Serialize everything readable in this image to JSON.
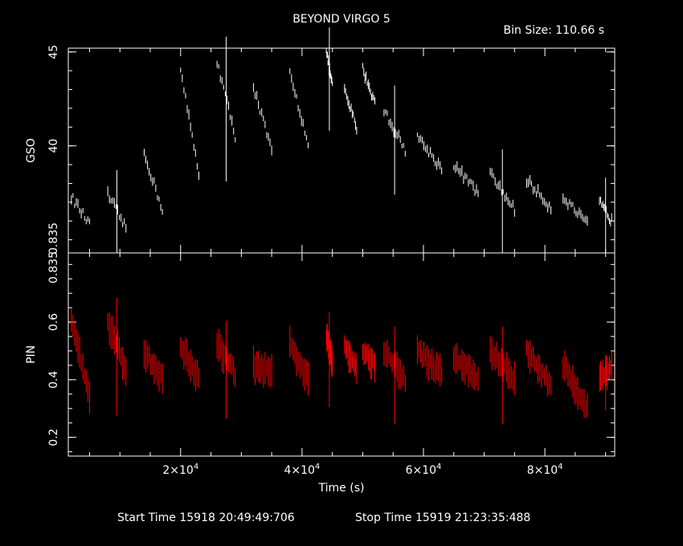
{
  "header": {
    "title": "BEYOND VIRGO 5",
    "bin_size": "Bin Size: 110.66 s"
  },
  "footer": {
    "start_time": "Start Time 15918 20:49:49:706",
    "stop_time": "Stop Time 15919 21:23:35:488"
  },
  "chart_data": [
    {
      "type": "line",
      "name": "GSO panel",
      "ylabel": "GSO",
      "ylim": [
        34.3,
        45.2
      ],
      "yticks": [
        40,
        45
      ],
      "ytick_labels": [
        "40",
        "45"
      ],
      "ybottom_label": "0.835",
      "xlim": [
        1500,
        91500
      ],
      "color": "#ffffff",
      "segments": [
        {
          "x0": 2000,
          "x1": 5000,
          "y0": 37.3,
          "y1": 35.8
        },
        {
          "x0": 8000,
          "x1": 11000,
          "y0": 37.4,
          "y1": 35.6
        },
        {
          "x0": 14000,
          "x1": 17000,
          "y0": 39.6,
          "y1": 36.6
        },
        {
          "x0": 20000,
          "x1": 23000,
          "y0": 44.0,
          "y1": 38.5
        },
        {
          "x0": 26000,
          "x1": 29000,
          "y0": 44.5,
          "y1": 40.5
        },
        {
          "x0": 32000,
          "x1": 35000,
          "y0": 43.2,
          "y1": 39.7
        },
        {
          "x0": 38000,
          "x1": 41000,
          "y0": 43.8,
          "y1": 40.2
        },
        {
          "x0": 44000,
          "x1": 45000,
          "y0": 45.0,
          "y1": 43.2
        },
        {
          "x0": 47000,
          "x1": 49000,
          "y0": 42.9,
          "y1": 41.0
        },
        {
          "x0": 50000,
          "x1": 52000,
          "y0": 44.1,
          "y1": 42.3
        },
        {
          "x0": 53500,
          "x1": 57000,
          "y0": 41.9,
          "y1": 39.8
        },
        {
          "x0": 59000,
          "x1": 63000,
          "y0": 40.5,
          "y1": 38.8
        },
        {
          "x0": 65000,
          "x1": 69000,
          "y0": 39.0,
          "y1": 37.5
        },
        {
          "x0": 71000,
          "x1": 75000,
          "y0": 38.5,
          "y1": 36.6
        },
        {
          "x0": 77000,
          "x1": 81000,
          "y0": 38.2,
          "y1": 36.7
        },
        {
          "x0": 83000,
          "x1": 87000,
          "y0": 37.3,
          "y1": 35.8
        },
        {
          "x0": 89000,
          "x1": 91000,
          "y0": 37.0,
          "y1": 36.0
        }
      ]
    },
    {
      "type": "line",
      "name": "PIN panel",
      "ylabel": "PIN",
      "ylim": [
        0.135,
        0.84
      ],
      "yticks": [
        0.2,
        0.4,
        0.6
      ],
      "ytick_labels": [
        "0.2",
        "0.4",
        "0.6"
      ],
      "ytop_label": "0.835",
      "xlabel": "Time (s)",
      "xlim": [
        1500,
        91500
      ],
      "xticks": [
        20000,
        40000,
        60000,
        80000
      ],
      "xtick_labels": [
        "2×10^4",
        "4×10^4",
        "6×10^4",
        "8×10^4"
      ],
      "color": "#ff0000",
      "segments": [
        {
          "x0": 2000,
          "x1": 5000,
          "y0": 0.62,
          "y1": 0.35
        },
        {
          "x0": 8000,
          "x1": 11000,
          "y0": 0.6,
          "y1": 0.43
        },
        {
          "x0": 14000,
          "x1": 17000,
          "y0": 0.5,
          "y1": 0.4
        },
        {
          "x0": 20000,
          "x1": 23000,
          "y0": 0.52,
          "y1": 0.4
        },
        {
          "x0": 26000,
          "x1": 29000,
          "y0": 0.52,
          "y1": 0.42
        },
        {
          "x0": 32000,
          "x1": 35000,
          "y0": 0.45,
          "y1": 0.42
        },
        {
          "x0": 38000,
          "x1": 41000,
          "y0": 0.52,
          "y1": 0.4
        },
        {
          "x0": 44000,
          "x1": 45000,
          "y0": 0.55,
          "y1": 0.46
        },
        {
          "x0": 47000,
          "x1": 49000,
          "y0": 0.52,
          "y1": 0.44
        },
        {
          "x0": 50000,
          "x1": 52000,
          "y0": 0.5,
          "y1": 0.45
        },
        {
          "x0": 53500,
          "x1": 57000,
          "y0": 0.5,
          "y1": 0.4
        },
        {
          "x0": 59000,
          "x1": 63000,
          "y0": 0.5,
          "y1": 0.42
        },
        {
          "x0": 65000,
          "x1": 69000,
          "y0": 0.48,
          "y1": 0.4
        },
        {
          "x0": 71000,
          "x1": 75000,
          "y0": 0.5,
          "y1": 0.4
        },
        {
          "x0": 77000,
          "x1": 81000,
          "y0": 0.5,
          "y1": 0.38
        },
        {
          "x0": 83000,
          "x1": 87000,
          "y0": 0.45,
          "y1": 0.3
        },
        {
          "x0": 89000,
          "x1": 91000,
          "y0": 0.4,
          "y1": 0.45
        }
      ]
    }
  ]
}
